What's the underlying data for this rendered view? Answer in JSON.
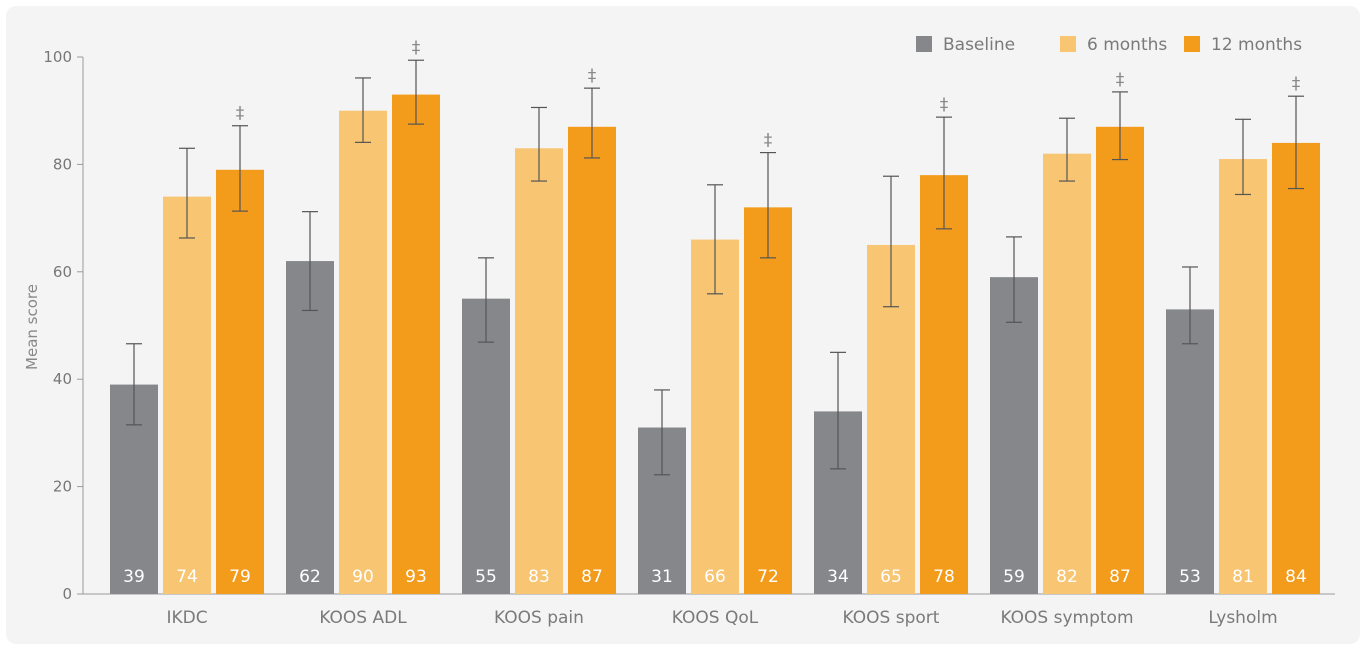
{
  "chart_data": {
    "type": "bar",
    "ylabel": "Mean score",
    "ylim": [
      0,
      100
    ],
    "yticks": [
      0,
      20,
      40,
      60,
      80,
      100
    ],
    "grid": false,
    "legend_position": "top-right",
    "categories": [
      "IKDC",
      "KOOS ADL",
      "KOOS pain",
      "KOOS QoL",
      "KOOS sport",
      "KOOS symptom",
      "Lysholm"
    ],
    "series": [
      {
        "name": "Baseline",
        "color": "#86878b",
        "values": [
          39,
          62,
          55,
          31,
          34,
          59,
          53
        ],
        "error_low": [
          31.5,
          52.8,
          46.9,
          22.2,
          23.3,
          50.6,
          46.6
        ],
        "error_high": [
          46.6,
          71.2,
          62.6,
          38.0,
          45.0,
          66.5,
          60.9
        ],
        "markers": [
          "",
          "",
          "",
          "",
          "",
          "",
          ""
        ]
      },
      {
        "name": "6 months",
        "color": "#f8c572",
        "values": [
          74,
          90,
          83,
          66,
          65,
          82,
          81
        ],
        "error_low": [
          66.3,
          84.1,
          76.9,
          55.9,
          53.5,
          76.9,
          74.4
        ],
        "error_high": [
          83.0,
          96.1,
          90.6,
          76.2,
          77.8,
          88.6,
          88.4
        ],
        "markers": [
          "",
          "",
          "",
          "",
          "",
          "",
          ""
        ]
      },
      {
        "name": "12 months",
        "color": "#f39c1c",
        "values": [
          79,
          93,
          87,
          72,
          78,
          87,
          84
        ],
        "error_low": [
          71.3,
          87.5,
          81.2,
          62.6,
          68.0,
          80.9,
          75.5
        ],
        "error_high": [
          87.2,
          99.4,
          94.2,
          82.2,
          88.8,
          93.5,
          92.7
        ],
        "markers": [
          "‡",
          "‡",
          "‡",
          "‡",
          "‡",
          "‡",
          "‡"
        ]
      }
    ]
  }
}
